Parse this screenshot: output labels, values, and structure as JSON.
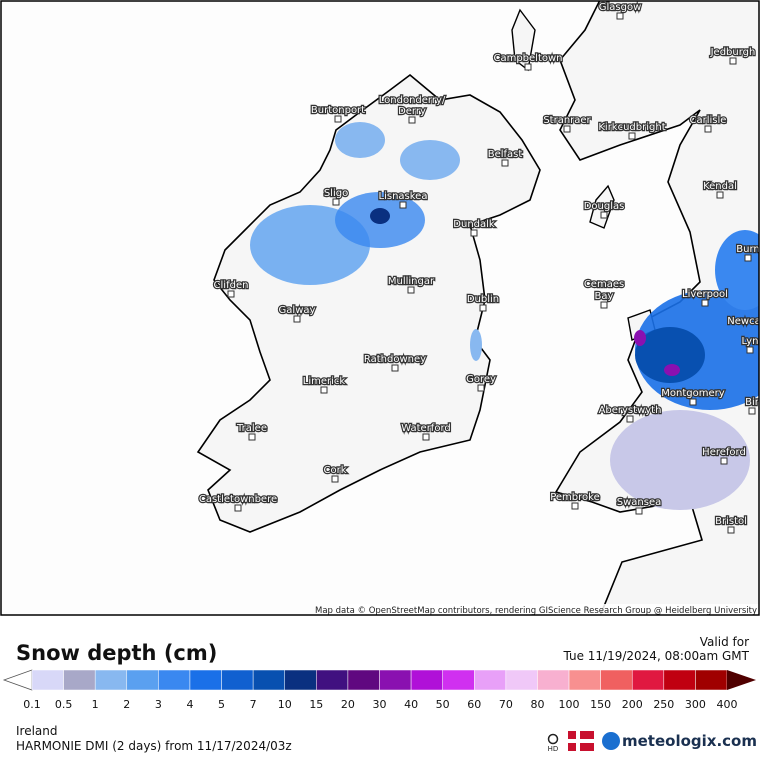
{
  "map": {
    "cities": [
      "Glasgow",
      "Jedburgh",
      "Campbeltown",
      "Burtonport",
      "Londonderry/",
      "Derry",
      "Stranraer",
      "Kirkcudbright",
      "Carlisle",
      "Belfast",
      "Sligo",
      "Lisnaskea",
      "Kendal",
      "Douglas",
      "Dundalk",
      "Burn",
      "Clifden",
      "Mullingar",
      "Cemaes",
      "Bay",
      "Dublin",
      "Liverpool",
      "Galway",
      "Newca",
      "Lyn",
      "Rathdowney",
      "Limerick",
      "Gorey",
      "Montgomery",
      "Bir",
      "Aberystwyth",
      "Tralee",
      "Waterford",
      "Hereford",
      "Cork",
      "Pembroke",
      "Castletownbere",
      "Swansea",
      "Bristol"
    ],
    "attribution": "Map data © OpenStreetMap contributors, rendering GIScience Research Group @ Heidelberg University"
  },
  "legend": {
    "title": "Snow depth (cm)",
    "valid_label": "Valid for",
    "valid_time": "Tue 11/19/2024, 08:00am GMT",
    "labels": [
      "0.1",
      "0.5",
      "1",
      "2",
      "3",
      "4",
      "5",
      "7",
      "10",
      "15",
      "20",
      "30",
      "40",
      "50",
      "60",
      "70",
      "80",
      "100",
      "150",
      "200",
      "250",
      "300",
      "400"
    ],
    "colors": [
      "#d8d8f8",
      "#a8a8c8",
      "#88b8f0",
      "#5aa0f0",
      "#3a88f0",
      "#1a70e8",
      "#1060d0",
      "#0850b0",
      "#0a3080",
      "#401080",
      "#600880",
      "#8a10b0",
      "#b010d8",
      "#d030f0",
      "#e8a0f8",
      "#f0c8f8",
      "#f8b0d0",
      "#f89090",
      "#f06060",
      "#e01840",
      "#c00010",
      "#a00000",
      "#800000",
      "#500000"
    ]
  },
  "footer": {
    "region": "Ireland",
    "model": "HARMONIE DMI (2 days) from 11/17/2024/03z",
    "hd": "HD",
    "brand": "meteologix.com"
  }
}
